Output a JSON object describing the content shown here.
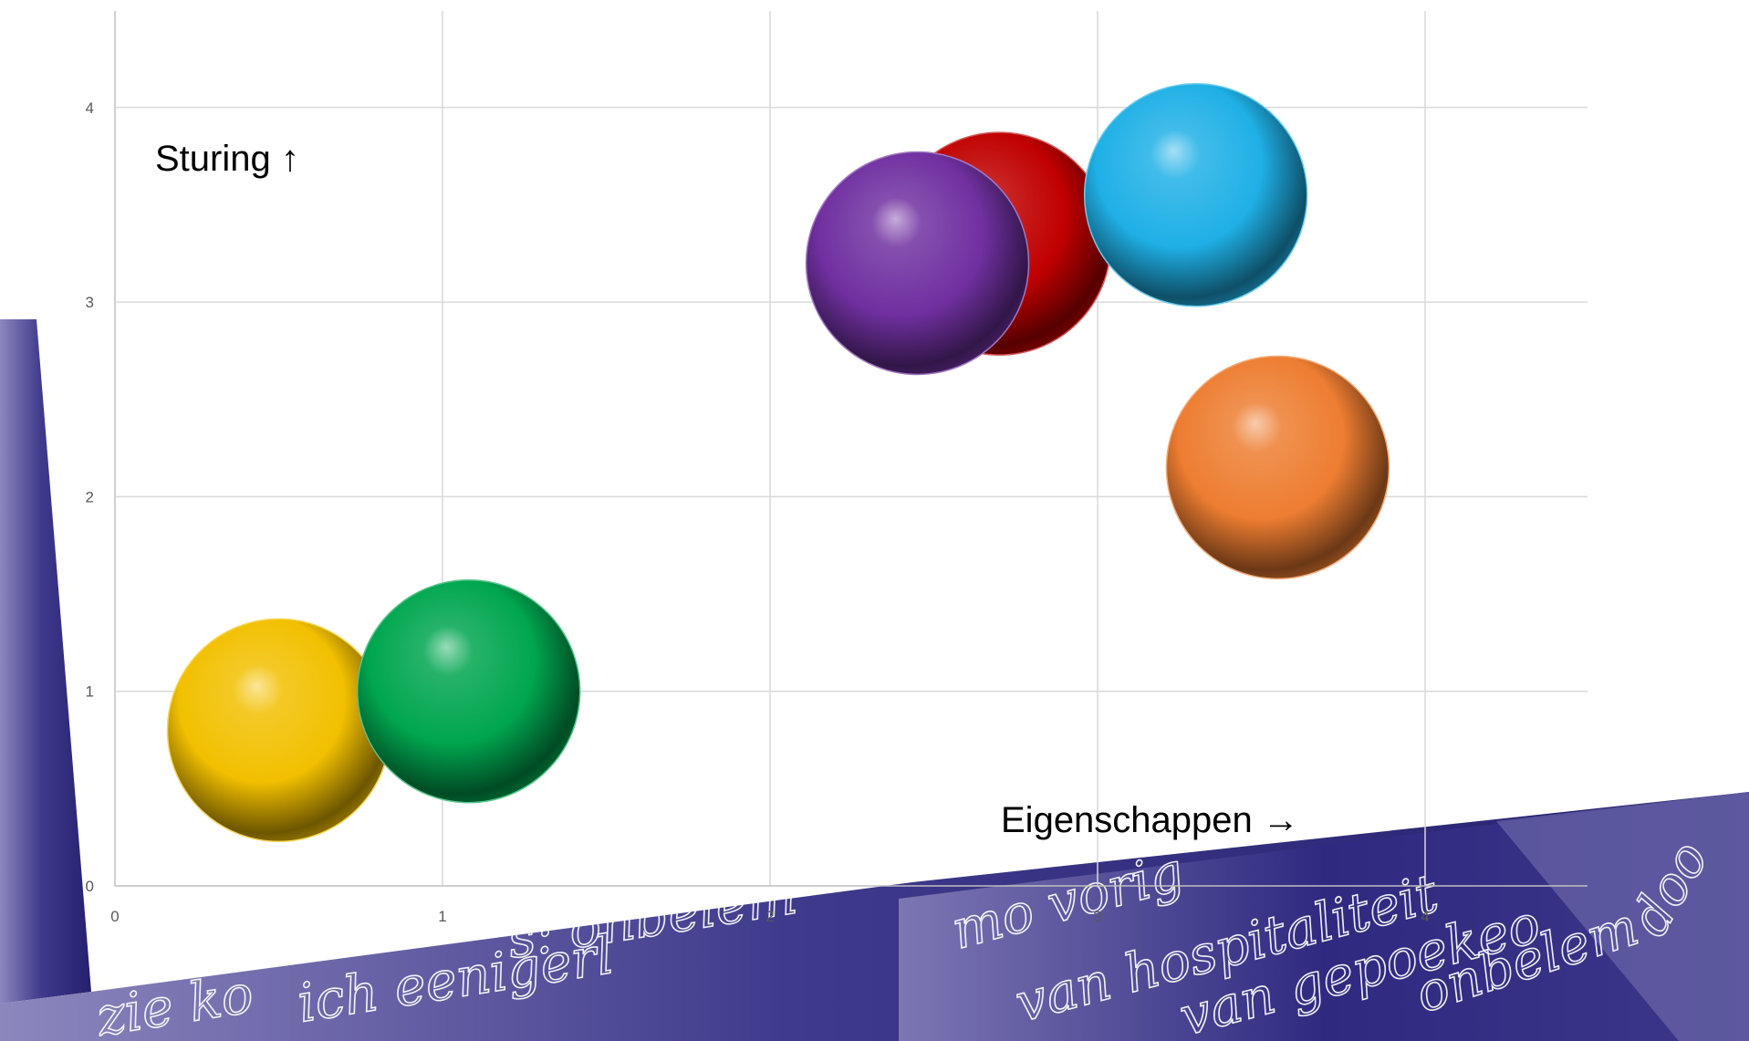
{
  "chart_data": {
    "type": "scatter",
    "title": "",
    "xlabel": "Eigenschappen →",
    "ylabel": "Sturing ↑",
    "xlim": [
      0,
      4.5
    ],
    "ylim": [
      0,
      4.5
    ],
    "x_ticks": [
      "0",
      "1",
      "2",
      "3",
      "4"
    ],
    "y_ticks": [
      "0",
      "1",
      "2",
      "3",
      "4"
    ],
    "grid": true,
    "series": [
      {
        "x": 0.5,
        "y": 0.8,
        "color": "#f2c000"
      },
      {
        "x": 1.08,
        "y": 1.0,
        "color": "#00a64f"
      },
      {
        "x": 2.7,
        "y": 3.3,
        "color": "#c00000"
      },
      {
        "x": 2.45,
        "y": 3.2,
        "color": "#7030a0"
      },
      {
        "x": 3.3,
        "y": 3.55,
        "color": "#1fb0e6"
      },
      {
        "x": 3.55,
        "y": 2.15,
        "color": "#ed7d31"
      }
    ]
  },
  "background": {
    "handwriting": [
      "s: onbelem",
      "ich eenigerl",
      "zie ko",
      "mo vorig",
      "van hospitaliteit",
      "van gepoekeo",
      "onbelem",
      "doo"
    ],
    "accent_color": "#2b2b7a"
  }
}
